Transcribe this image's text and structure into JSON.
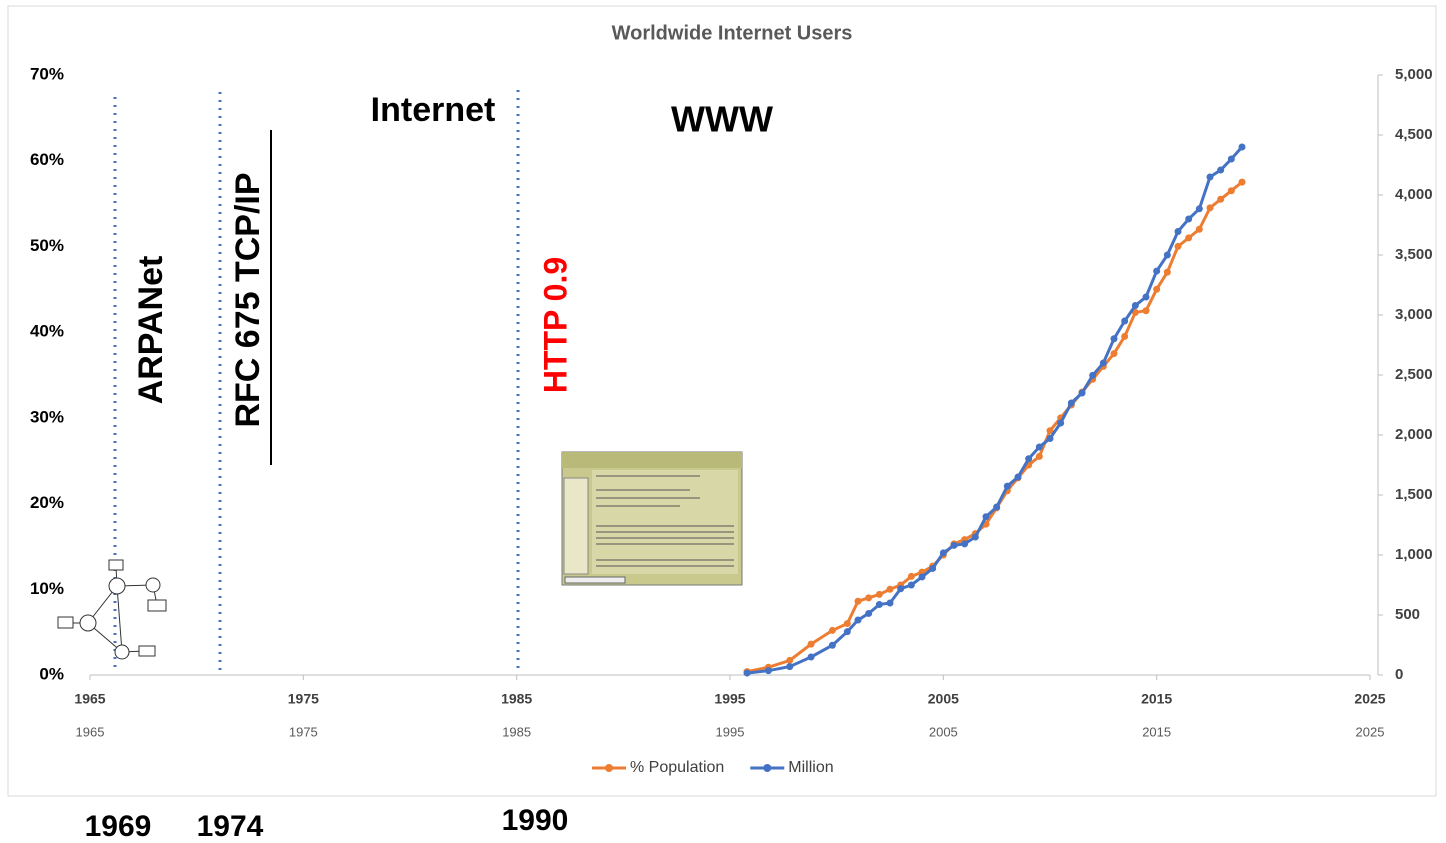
{
  "chart_data": {
    "type": "line",
    "title": "Worldwide Internet Users",
    "x": [
      1995.8,
      1996.8,
      1997.8,
      1998.8,
      1999.8,
      2000.5,
      2001,
      2001.5,
      2002,
      2002.5,
      2003,
      2003.5,
      2004,
      2004.5,
      2005,
      2005.5,
      2006,
      2006.5,
      2007,
      2007.5,
      2008,
      2008.5,
      2009,
      2009.5,
      2010,
      2010.5,
      2011,
      2011.5,
      2012,
      2012.5,
      2013,
      2013.5,
      2014,
      2014.5,
      2015,
      2015.5,
      2016,
      2016.5,
      2017,
      2017.5,
      2018,
      2018.5,
      2019
    ],
    "series": [
      {
        "name": "% Population",
        "color": "#ED7D31",
        "axis": "y",
        "values": [
          0.4,
          0.9,
          1.7,
          3.6,
          5.2,
          6.0,
          8.6,
          9.0,
          9.4,
          10.0,
          10.5,
          11.5,
          12.0,
          12.7,
          14.0,
          15.3,
          15.8,
          16.5,
          17.6,
          19.5,
          21.5,
          23.0,
          24.5,
          25.5,
          28.5,
          30.0,
          31.5,
          33.0,
          34.5,
          36.0,
          37.5,
          39.5,
          42.3,
          42.5,
          45.0,
          47.0,
          50.0,
          51.0,
          52.0,
          54.5,
          55.5,
          56.5,
          57.5
        ]
      },
      {
        "name": "Million",
        "color": "#4472C4",
        "axis": "y2",
        "values": [
          16,
          36,
          70,
          150,
          248,
          361,
          458,
          513,
          587,
          600,
          719,
          750,
          817,
          888,
          1018,
          1080,
          1093,
          1150,
          1319,
          1400,
          1574,
          1650,
          1802,
          1900,
          1971,
          2100,
          2267,
          2350,
          2497,
          2600,
          2802,
          2950,
          3079,
          3150,
          3366,
          3500,
          3696,
          3800,
          3885,
          4150,
          4208,
          4300,
          4400
        ]
      }
    ],
    "xlim": [
      1965,
      2025
    ],
    "xticks": [
      1965,
      1975,
      1985,
      1995,
      2005,
      2015,
      2025
    ],
    "ylim": [
      0,
      70
    ],
    "yticks": [
      {
        "value": 0,
        "label": "0%"
      },
      {
        "value": 10,
        "label": "10%"
      },
      {
        "value": 20,
        "label": "20%"
      },
      {
        "value": 30,
        "label": "30%"
      },
      {
        "value": 40,
        "label": "40%"
      },
      {
        "value": 50,
        "label": "50%"
      },
      {
        "value": 60,
        "label": "60%"
      },
      {
        "value": 70,
        "label": "70%"
      }
    ],
    "y2lim": [
      0,
      5000
    ],
    "y2ticks": [
      0,
      500,
      {
        "value": 1000,
        "label": "1,000"
      },
      {
        "value": 1500,
        "label": "1,500"
      },
      {
        "value": 2000,
        "label": "2,000"
      },
      {
        "value": 2500,
        "label": "2,500"
      },
      {
        "value": 3000,
        "label": "3,000"
      },
      {
        "value": 3500,
        "label": "3,500"
      },
      {
        "value": 4000,
        "label": "4,000"
      },
      {
        "value": 4500,
        "label": "4,500"
      },
      {
        "value": 5000,
        "label": "5,000"
      }
    ],
    "grid": false,
    "legend": "bottom",
    "annotations": [
      "ARPANet",
      "RFC 675 TCP/IP",
      "Internet",
      "WWW",
      "HTTP 0.9",
      "1969",
      "1974",
      "1990"
    ]
  }
}
